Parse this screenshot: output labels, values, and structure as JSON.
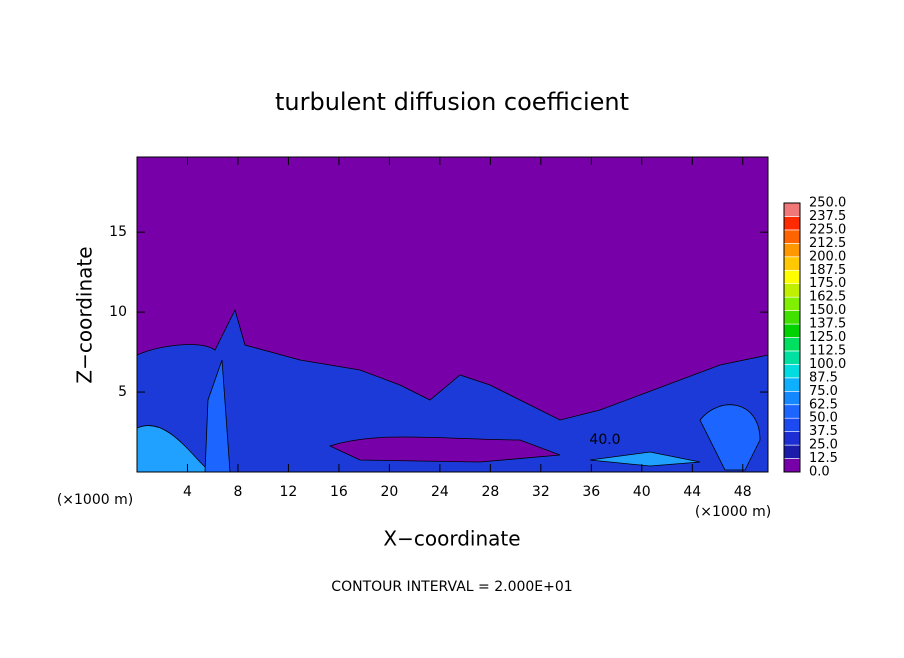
{
  "chart_data": {
    "type": "contour",
    "title": "turbulent diffusion coefficient",
    "xlabel": "X−coordinate",
    "ylabel": "Z−coordinate",
    "x_unit_label": "(×1000 m)",
    "note": "CONTOUR INTERVAL = 2.000E+01",
    "contour_label": "40.0",
    "xlim": [
      0,
      50
    ],
    "ylim": [
      0,
      19.7
    ],
    "xticks": [
      4,
      8,
      12,
      16,
      20,
      24,
      28,
      32,
      36,
      40,
      44,
      48
    ],
    "yticks": [
      5,
      10,
      15
    ],
    "levels": [
      {
        "value": 0,
        "label": "0.0"
      },
      12.5,
      {
        "value": 25,
        "label": "25.0"
      },
      37.5,
      {
        "value": 50,
        "label": "50.0"
      },
      62.5,
      {
        "value": 75,
        "label": "75.0"
      },
      87.5,
      {
        "value": 100,
        "label": "100.0"
      },
      112.5,
      {
        "value": 125,
        "label": "125.0"
      },
      137.5,
      {
        "value": 150,
        "label": "150.0"
      },
      162.5,
      {
        "value": 175,
        "label": "175.0"
      },
      187.5,
      {
        "value": 200,
        "label": "200.0"
      },
      212.5,
      {
        "value": 225,
        "label": "225.0"
      },
      237.5,
      {
        "value": 250,
        "label": "250.0"
      }
    ],
    "colors": [
      "#7800a8",
      "#1c1caa",
      "#1c2ed4",
      "#1c4af0",
      "#1c66ff",
      "#1488ff",
      "#0cb0ff",
      "#00dce0",
      "#00e0a0",
      "#00e060",
      "#00d200",
      "#40e000",
      "#80f000",
      "#c0f000",
      "#ffff00",
      "#ffc800",
      "#ff9800",
      "#ff6400",
      "#ff2a00",
      "#f07878"
    ]
  }
}
